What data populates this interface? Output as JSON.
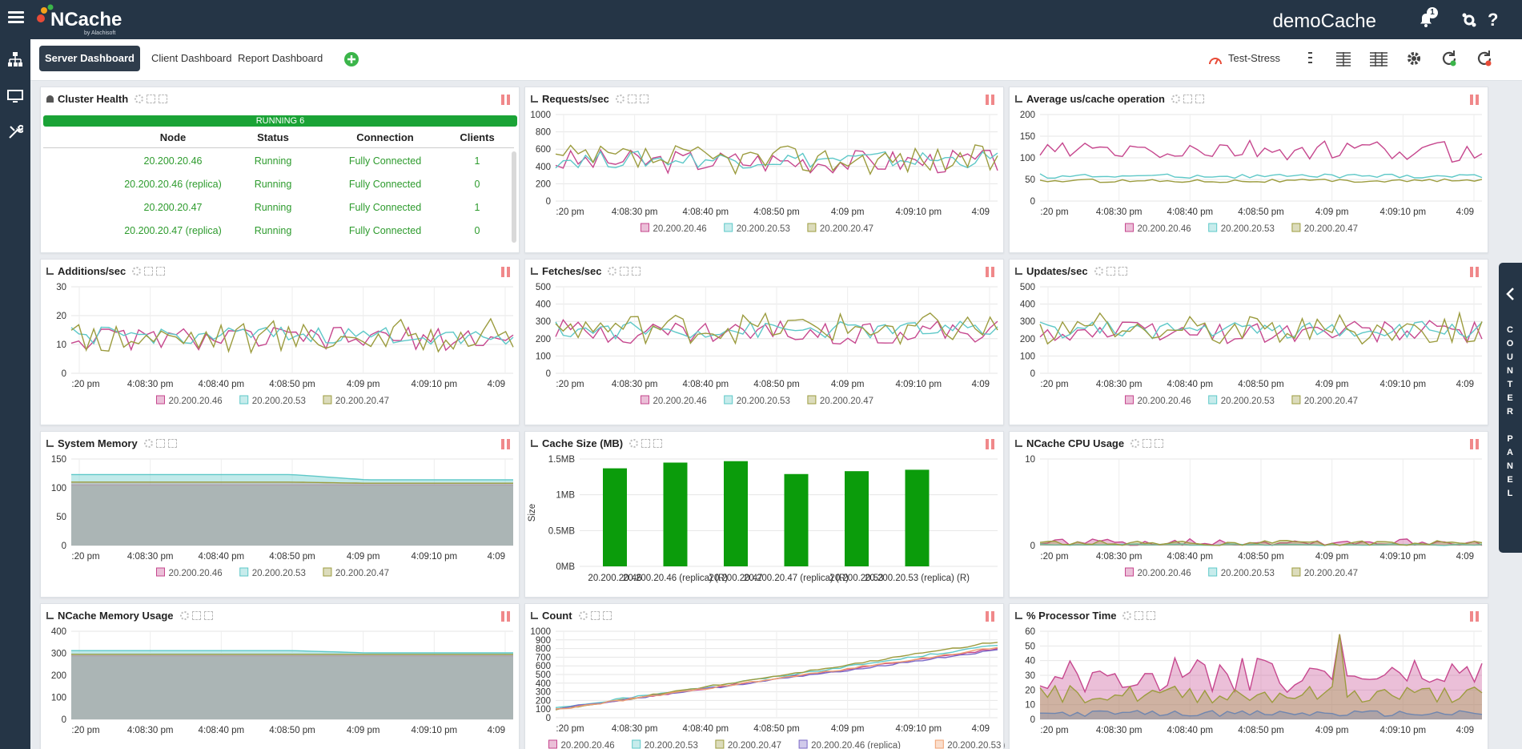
{
  "app": {
    "logo_text": "NCache",
    "logo_sub": "by Alachisoft",
    "cache_name": "demoCache",
    "notification_count": "1"
  },
  "colors": {
    "topbar": "#253546",
    "series": [
      "#c6478e",
      "#5ec8c8",
      "#9c9c3f",
      "#7b68c6",
      "#f0a070"
    ],
    "running": "#1aa336",
    "bar": "#0b9c0b"
  },
  "tabs": [
    {
      "label": "Server Dashboard",
      "active": true
    },
    {
      "label": "Client Dashboard",
      "active": false
    },
    {
      "label": "Report Dashboard",
      "active": false
    }
  ],
  "toolbar": {
    "stress_label": "Test-Stress"
  },
  "counter_panel": {
    "label": "COUNTER PANEL"
  },
  "time_ticks": [
    ":20 pm",
    "4:08:30 pm",
    "4:08:40 pm",
    "4:08:50 pm",
    "4:09 pm",
    "4:09:10 pm",
    "4:09"
  ],
  "series_names": [
    "20.200.20.46",
    "20.200.20.53",
    "20.200.20.47"
  ],
  "cluster_health": {
    "title": "Cluster Health",
    "status": "RUNNING 6",
    "columns": [
      "Node",
      "Status",
      "Connection",
      "Clients"
    ],
    "rows": [
      [
        "20.200.20.46",
        "Running",
        "Fully Connected",
        "1"
      ],
      [
        "20.200.20.46 (replica)",
        "Running",
        "Fully Connected",
        "0"
      ],
      [
        "20.200.20.47",
        "Running",
        "Fully Connected",
        "1"
      ],
      [
        "20.200.20.47 (replica)",
        "Running",
        "Fully Connected",
        "0"
      ]
    ]
  },
  "panels": [
    {
      "title": "Requests/sec"
    },
    {
      "title": "Average us/cache operation"
    },
    {
      "title": "Additions/sec"
    },
    {
      "title": "Fetches/sec"
    },
    {
      "title": "Updates/sec"
    },
    {
      "title": "System Memory"
    },
    {
      "title": "Cache Size (MB)"
    },
    {
      "title": "NCache CPU Usage"
    },
    {
      "title": "NCache Memory Usage"
    },
    {
      "title": "Count"
    },
    {
      "title": "% Processor Time"
    }
  ],
  "chart_data": [
    {
      "panel": "Requests/sec",
      "type": "line",
      "ylim": [
        0,
        1000
      ],
      "yticks": [
        0,
        200,
        400,
        600,
        800,
        1000
      ],
      "legend": "bottom",
      "grid": true,
      "series": [
        {
          "name": "20.200.20.46",
          "base": 460,
          "amp": 140
        },
        {
          "name": "20.200.20.53",
          "base": 480,
          "amp": 100
        },
        {
          "name": "20.200.20.47",
          "base": 480,
          "amp": 170
        }
      ]
    },
    {
      "panel": "Average us/cache operation",
      "type": "line",
      "ylim": [
        0,
        200
      ],
      "yticks": [
        0,
        50,
        100,
        150,
        200
      ],
      "legend": "bottom",
      "grid": true,
      "series": [
        {
          "name": "20.200.20.46",
          "base": 115,
          "amp": 25
        },
        {
          "name": "20.200.20.53",
          "base": 58,
          "amp": 5
        },
        {
          "name": "20.200.20.47",
          "base": 47,
          "amp": 4
        }
      ]
    },
    {
      "panel": "Additions/sec",
      "type": "line",
      "ylim": [
        0,
        30
      ],
      "yticks": [
        0,
        10,
        20,
        30
      ],
      "legend": "bottom",
      "grid": true,
      "series": [
        {
          "name": "20.200.20.46",
          "base": 12,
          "amp": 4
        },
        {
          "name": "20.200.20.53",
          "base": 13,
          "amp": 3
        },
        {
          "name": "20.200.20.47",
          "base": 13,
          "amp": 6
        }
      ]
    },
    {
      "panel": "Fetches/sec",
      "type": "line",
      "ylim": [
        0,
        500
      ],
      "yticks": [
        0,
        100,
        200,
        300,
        400,
        500
      ],
      "legend": "bottom",
      "grid": true,
      "series": [
        {
          "name": "20.200.20.46",
          "base": 240,
          "amp": 70
        },
        {
          "name": "20.200.20.53",
          "base": 250,
          "amp": 50
        },
        {
          "name": "20.200.20.47",
          "base": 260,
          "amp": 90
        }
      ]
    },
    {
      "panel": "Updates/sec",
      "type": "line",
      "ylim": [
        0,
        500
      ],
      "yticks": [
        0,
        100,
        200,
        300,
        400,
        500
      ],
      "legend": "bottom",
      "grid": true,
      "series": [
        {
          "name": "20.200.20.46",
          "base": 240,
          "amp": 70
        },
        {
          "name": "20.200.20.53",
          "base": 250,
          "amp": 50
        },
        {
          "name": "20.200.20.47",
          "base": 260,
          "amp": 90
        }
      ]
    },
    {
      "panel": "System Memory",
      "type": "area",
      "ylim": [
        0,
        150
      ],
      "yticks": [
        0,
        50,
        100,
        150
      ],
      "legend": "bottom",
      "grid": true,
      "series": [
        {
          "name": "20.200.20.46",
          "values": [
            105,
            105,
            105,
            105,
            105,
            105,
            105
          ]
        },
        {
          "name": "20.200.20.53",
          "values": [
            123,
            123,
            123,
            123,
            114,
            114,
            114
          ]
        },
        {
          "name": "20.200.20.47",
          "values": [
            110,
            110,
            110,
            110,
            108,
            108,
            108
          ]
        }
      ]
    },
    {
      "panel": "Cache Size (MB)",
      "type": "bar",
      "ylabel": "Size",
      "yticks": [
        "0MB",
        "0.5MB",
        "1MB",
        "1.5MB"
      ],
      "ylim": [
        0,
        1.5
      ],
      "categories": [
        "20.200.20.46",
        "20.200.20.46 (replica) (R)",
        "20.200.20.47",
        "20.200.20.47 (replica) (R)",
        "20.200.20.53",
        "20.200.20.53 (replica) (R)"
      ],
      "values": [
        1.37,
        1.45,
        1.47,
        1.29,
        1.33,
        1.35
      ]
    },
    {
      "panel": "NCache CPU Usage",
      "type": "area",
      "ylim": [
        0,
        10
      ],
      "yticks": [
        0,
        10
      ],
      "legend": "bottom",
      "grid": true,
      "series": [
        {
          "name": "20.200.20.46",
          "base": 0.4,
          "amp": 0.4
        },
        {
          "name": "20.200.20.53",
          "base": 0.1,
          "amp": 0.1
        },
        {
          "name": "20.200.20.47",
          "base": 0.3,
          "amp": 0.3
        }
      ]
    },
    {
      "panel": "NCache Memory Usage",
      "type": "area",
      "ylim": [
        0,
        400
      ],
      "yticks": [
        0,
        100,
        200,
        300,
        400
      ],
      "grid": true,
      "series": [
        {
          "name": "20.200.20.46",
          "values": [
            288,
            288,
            288,
            288,
            288,
            288,
            288
          ]
        },
        {
          "name": "20.200.20.53",
          "values": [
            312,
            312,
            312,
            312,
            302,
            302,
            302
          ]
        },
        {
          "name": "20.200.20.47",
          "values": [
            295,
            295,
            295,
            295,
            295,
            295,
            295
          ]
        }
      ]
    },
    {
      "panel": "Count",
      "type": "line",
      "ylim": [
        0,
        1000
      ],
      "yticks": [
        0,
        100,
        200,
        300,
        400,
        500,
        600,
        700,
        800,
        900,
        1000
      ],
      "legend_labels": [
        "20.200.20.46",
        "20.200.20.53",
        "20.200.20.47",
        "20.200.20.46 (replica)",
        "20.200.20.53 (replica)"
      ],
      "series": [
        {
          "name": "20.200.20.46",
          "start": 100,
          "end": 800
        },
        {
          "name": "20.200.20.53",
          "start": 110,
          "end": 840
        },
        {
          "name": "20.200.20.47",
          "start": 90,
          "end": 880
        },
        {
          "name": "20.200.20.46 (replica)",
          "start": 105,
          "end": 780
        },
        {
          "name": "20.200.20.53 (replica)",
          "start": 95,
          "end": 810
        }
      ]
    },
    {
      "panel": "% Processor Time",
      "type": "area",
      "ylim": [
        0,
        60
      ],
      "yticks": [
        0,
        10,
        20,
        30,
        40,
        50,
        60
      ],
      "series": [
        {
          "name": "20.200.20.46",
          "base": 30,
          "amp": 12
        },
        {
          "name": "20.200.20.47",
          "base": 17,
          "amp": 6
        },
        {
          "name": "20.200.20.53",
          "base": 4,
          "amp": 2
        }
      ]
    }
  ]
}
